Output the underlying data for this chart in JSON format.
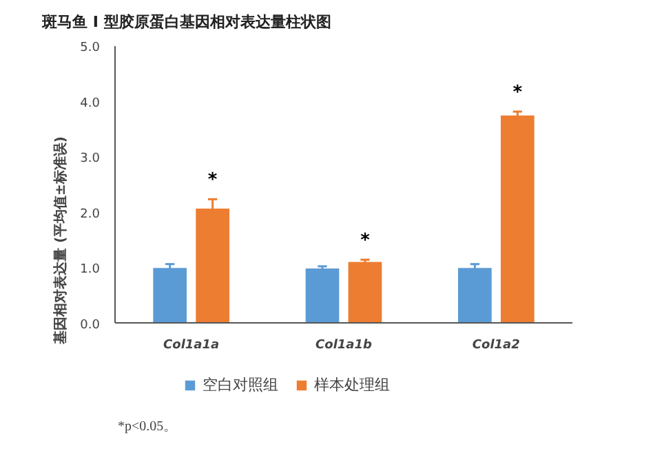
{
  "chart_data": {
    "type": "bar",
    "title": "斑马鱼 I 型胶原蛋白基因相对表达量柱状图",
    "ylabel": "基因相对表达量 (平均值±标准误)",
    "categories": [
      "Col1a1a",
      "Col1a1b",
      "Col1a2"
    ],
    "series": [
      {
        "name": "空白对照组",
        "color": "#5b9bd5",
        "values": [
          1.0,
          0.99,
          1.0
        ],
        "errors": [
          0.07,
          0.04,
          0.07
        ]
      },
      {
        "name": "样本处理组",
        "color": "#ed7d31",
        "values": [
          2.07,
          1.11,
          3.75
        ],
        "errors": [
          0.17,
          0.04,
          0.07
        ]
      }
    ],
    "ylim": [
      0,
      5
    ],
    "yticks": [
      {
        "value": 0,
        "label": "0.0"
      },
      {
        "value": 1,
        "label": "1.0"
      },
      {
        "value": 2,
        "label": "2.0"
      },
      {
        "value": 3,
        "label": "3.0"
      },
      {
        "value": 4,
        "label": "4.0"
      },
      {
        "value": 5,
        "label": "5.0"
      }
    ],
    "grid": false,
    "legend": "bottom",
    "annotations": [
      "*",
      "*",
      "*",
      "*p<0.05。"
    ]
  }
}
